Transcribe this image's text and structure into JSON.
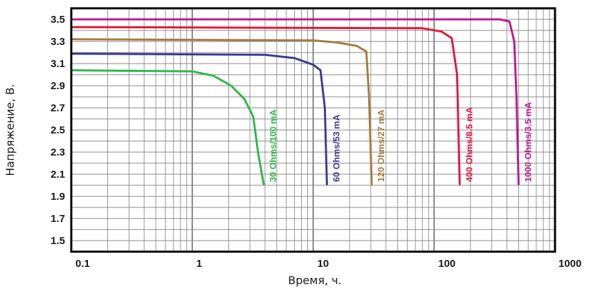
{
  "chart_data": {
    "type": "line",
    "title": "",
    "xlabel": "Время, ч.",
    "ylabel": "Напряжение, В.",
    "x_scale": "log",
    "xlim": [
      0.1,
      1000
    ],
    "ylim": [
      1.4,
      3.6
    ],
    "x_ticks": [
      "0.1",
      "1",
      "10",
      "100",
      "1000"
    ],
    "y_ticks": [
      "3.5",
      "3.3",
      "3.1",
      "2.9",
      "2.7",
      "2.5",
      "2.3",
      "2.1",
      "1.9",
      "1.7",
      "1.5"
    ],
    "grid": true,
    "series": [
      {
        "name": "30 Ohms/100 mA",
        "color": "#2db84b",
        "points": [
          [
            0.1,
            3.04
          ],
          [
            1.0,
            3.03
          ],
          [
            1.5,
            2.99
          ],
          [
            2.1,
            2.9
          ],
          [
            2.7,
            2.78
          ],
          [
            3.2,
            2.62
          ],
          [
            3.5,
            2.3
          ],
          [
            3.9,
            2.01
          ]
        ]
      },
      {
        "name": "60 Ohms/53 mA",
        "color": "#3b3b92",
        "points": [
          [
            0.1,
            3.19
          ],
          [
            4.0,
            3.18
          ],
          [
            7.0,
            3.15
          ],
          [
            10.0,
            3.09
          ],
          [
            11.5,
            3.04
          ],
          [
            12.5,
            2.7
          ],
          [
            13.0,
            2.01
          ]
        ]
      },
      {
        "name": "120 Ohms/27 mA",
        "color": "#a67c3d",
        "points": [
          [
            0.1,
            3.32
          ],
          [
            10.0,
            3.31
          ],
          [
            16.0,
            3.29
          ],
          [
            23.0,
            3.26
          ],
          [
            27.5,
            3.21
          ],
          [
            29.0,
            2.8
          ],
          [
            30.5,
            2.01
          ]
        ]
      },
      {
        "name": "400 Ohms/8.5 mA",
        "color": "#e3173e",
        "points": [
          [
            0.1,
            3.43
          ],
          [
            80.0,
            3.42
          ],
          [
            115.0,
            3.39
          ],
          [
            140.0,
            3.33
          ],
          [
            155.0,
            3.0
          ],
          [
            163.0,
            2.01
          ]
        ]
      },
      {
        "name": "1000 Ohms/3.5 mA",
        "color": "#c0198d",
        "points": [
          [
            0.1,
            3.5
          ],
          [
            350.0,
            3.5
          ],
          [
            420.0,
            3.48
          ],
          [
            460.0,
            3.3
          ],
          [
            480.0,
            2.8
          ],
          [
            500.0,
            2.01
          ]
        ]
      }
    ]
  }
}
